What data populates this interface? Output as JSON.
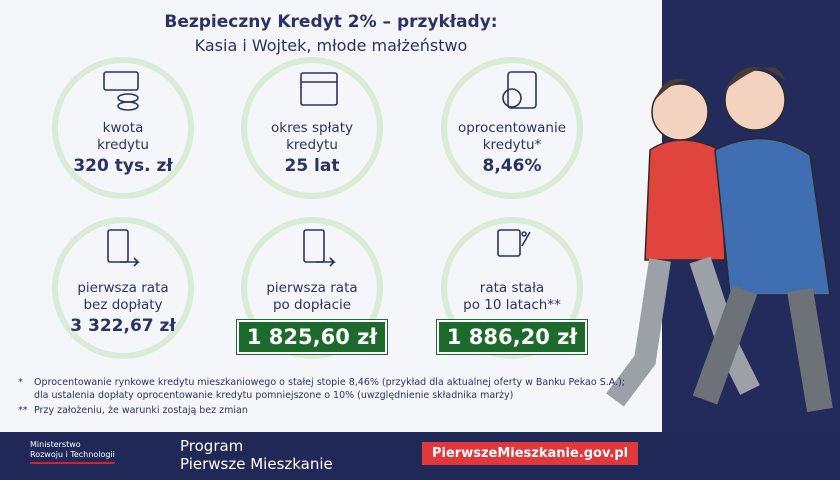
{
  "header": {
    "title": "Bezpieczny Kredyt 2% – przykłady:",
    "subtitle": "Kasia i Wojtek, młode małżeństwo"
  },
  "items": [
    {
      "label": [
        "kwota",
        "kredytu"
      ],
      "value": "320 tys. zł"
    },
    {
      "label": [
        "okres spłaty",
        "kredytu"
      ],
      "value": "25 lat"
    },
    {
      "label": [
        "oprocentowanie",
        "kredytu*"
      ],
      "value": "8,46%"
    },
    {
      "label": [
        "pierwsza rata",
        "bez dopłaty"
      ],
      "value": "3 322,67 zł"
    },
    {
      "label": [
        "pierwsza rata",
        "po dopłacie"
      ],
      "value": "1 825,60 zł"
    },
    {
      "label": [
        "rata stała",
        "po 10 latach**"
      ],
      "value": "1 886,20 zł"
    }
  ],
  "notes": [
    {
      "marker": "*",
      "lines": [
        "Oprocentowanie rynkowe kredytu mieszkaniowego o stałej stopie 8,46% (przykład dla aktualnej oferty w Banku Pekao S.A.);",
        "dla ustalenia dopłaty oprocentowanie kredytu pomniejszone o 10% (uwzględnienie składnika marży)"
      ]
    },
    {
      "marker": "**",
      "lines": [
        "Przy założeniu, że warunki zostają bez zmian"
      ]
    }
  ],
  "footer": {
    "ministry": [
      "Ministerstwo",
      "Rozwoju i Technologii"
    ],
    "program": [
      "Program",
      "Pierwsze Mieszkanie"
    ],
    "url": "PierwszeMieszkanie.gov.pl"
  }
}
